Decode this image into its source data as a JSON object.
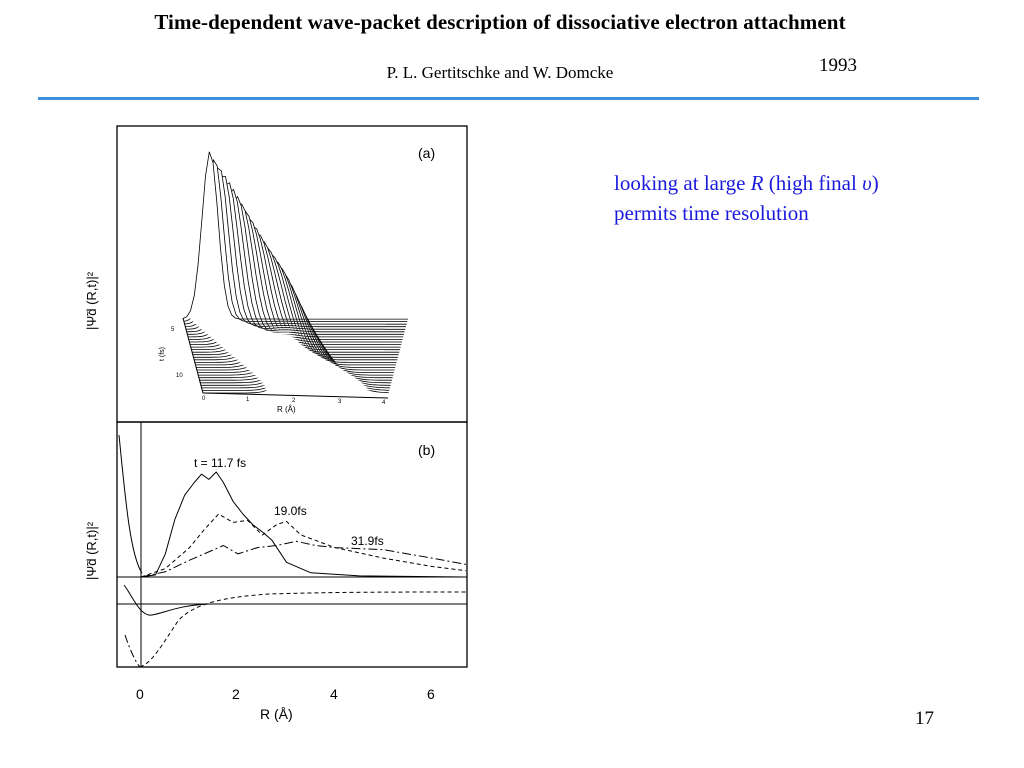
{
  "header": {
    "title": "Time-dependent wave-packet description of dissociative electron attachment",
    "authors": "P. L. Gertitschke and W. Domcke",
    "year": "1993"
  },
  "accent_color": "#3f8fdf",
  "note": {
    "text_1": "looking at large ",
    "var_R": "R",
    "text_2": " (high final ",
    "var_v": "υ",
    "text_3": ") permits time resolution",
    "color": "#1a1adb"
  },
  "page_number": "17",
  "figure": {
    "panel_a_label": "(a)",
    "panel_b_label": "(b)",
    "ylabel": "|Ψ̃d (R,t)|²",
    "xlabel": "R (Å)",
    "panel_a_xlabel": "R (Å)",
    "panel_a_tlabel": "t (fs)",
    "panel_a_xticks": [
      "0",
      "1",
      "2",
      "3",
      "4"
    ],
    "panel_a_tticks": [
      "5",
      "10"
    ],
    "xticks": [
      "0",
      "2",
      "4",
      "6"
    ],
    "curve_labels": [
      "t = 11.7 fs",
      "19.0fs",
      "31.9fs"
    ]
  },
  "chart_data": {
    "type": "line",
    "title": "",
    "xlabel": "R (Å)",
    "ylabel": "|Ψ̃d (R,t)|²",
    "xlim": [
      -0.5,
      6.7
    ],
    "x_ticks": [
      0,
      2,
      4,
      6
    ],
    "series": [
      {
        "name": "t = 11.7 fs",
        "style": "solid",
        "x": [
          0.0,
          0.3,
          0.5,
          0.7,
          0.9,
          1.1,
          1.25,
          1.4,
          1.55,
          1.7,
          1.9,
          2.1,
          2.3,
          2.5,
          2.7,
          3.0,
          3.5,
          4.5,
          6.7
        ],
        "y": [
          0.0,
          0.02,
          0.22,
          0.55,
          0.78,
          0.9,
          0.98,
          0.93,
          1.0,
          0.9,
          0.72,
          0.6,
          0.5,
          0.43,
          0.35,
          0.14,
          0.04,
          0.01,
          0.0
        ]
      },
      {
        "name": "19.0fs",
        "style": "dashed",
        "x": [
          0.0,
          0.5,
          1.0,
          1.3,
          1.6,
          1.9,
          2.2,
          2.5,
          2.8,
          3.0,
          3.3,
          4.0,
          5.0,
          6.0,
          6.7
        ],
        "y": [
          0.0,
          0.08,
          0.28,
          0.45,
          0.6,
          0.52,
          0.54,
          0.4,
          0.5,
          0.53,
          0.4,
          0.28,
          0.18,
          0.1,
          0.06
        ]
      },
      {
        "name": "31.9fs",
        "style": "dash-dot",
        "x": [
          0.0,
          0.5,
          1.0,
          1.3,
          1.7,
          2.0,
          2.4,
          2.8,
          3.2,
          3.6,
          4.0,
          5.0,
          6.0,
          6.7
        ],
        "y": [
          0.0,
          0.05,
          0.16,
          0.22,
          0.3,
          0.22,
          0.28,
          0.3,
          0.34,
          0.3,
          0.28,
          0.26,
          0.18,
          0.12
        ]
      }
    ]
  }
}
